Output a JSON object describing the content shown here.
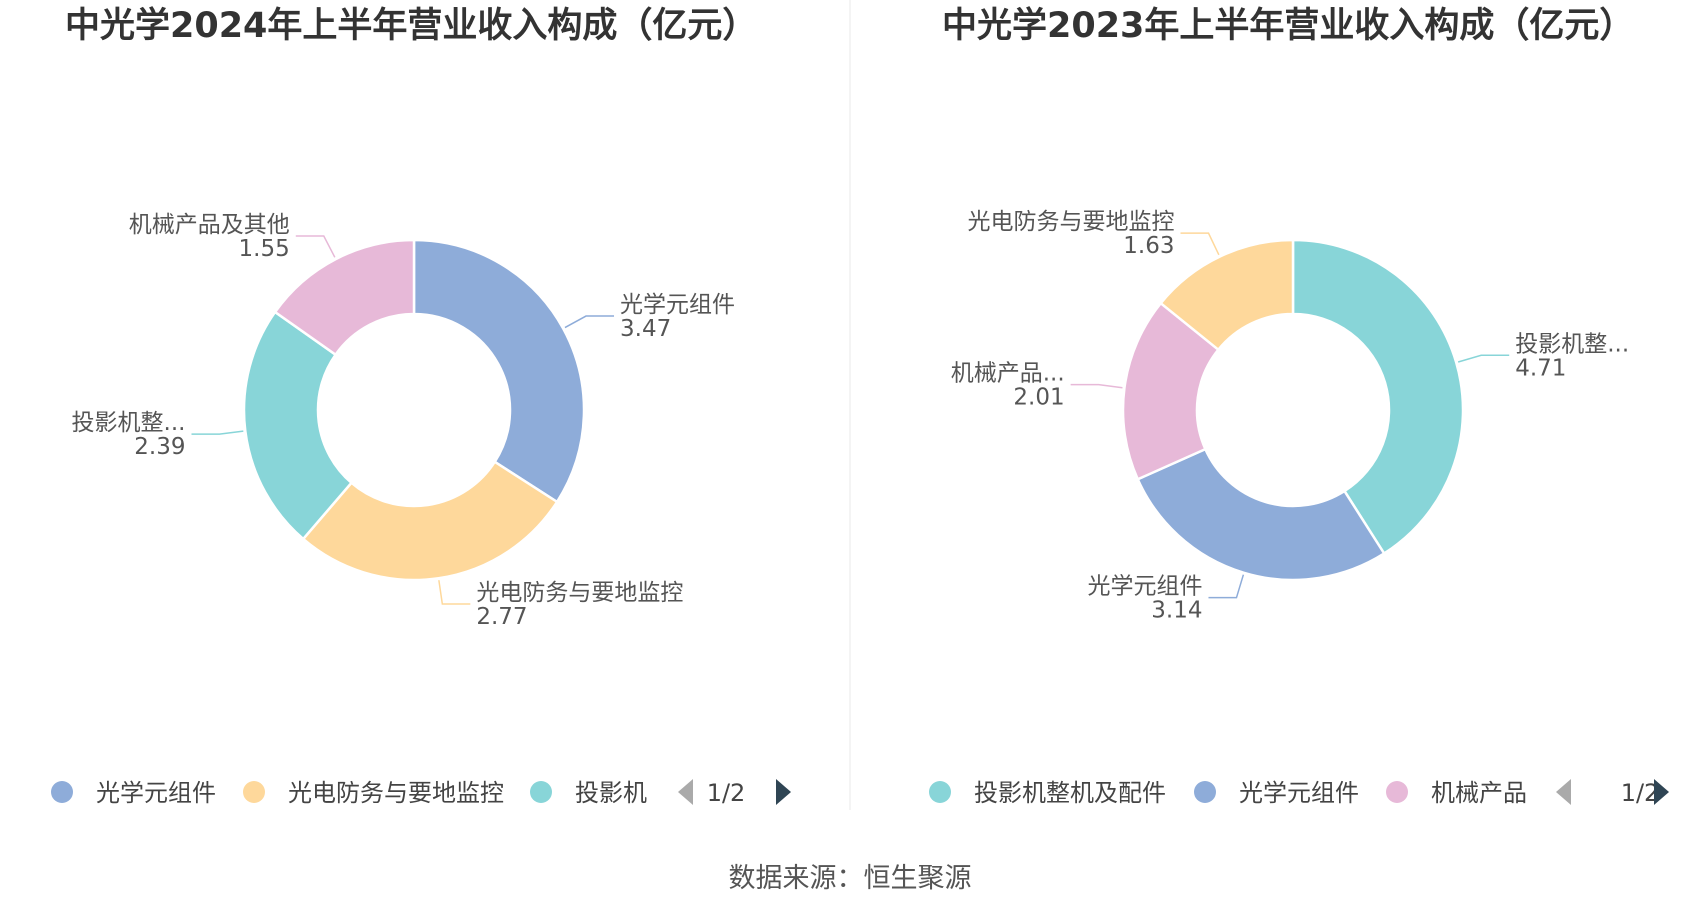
{
  "footer": "数据来源：恒生聚源",
  "chart_data": [
    {
      "type": "pie",
      "title": "中光学2024年上半年营业收入构成（亿元）",
      "series": [
        {
          "name": "光学元组件",
          "label": "光学元组件",
          "value": 3.47,
          "value_text": "3.47",
          "color": "#8eacd9"
        },
        {
          "name": "光电防务与要地监控",
          "label": "光电防务与要地监控",
          "value": 2.77,
          "value_text": "2.77",
          "color": "#fed89b"
        },
        {
          "name": "投影机整机及配件",
          "label": "投影机整...",
          "value": 2.39,
          "value_text": "2.39",
          "color": "#88d5d8"
        },
        {
          "name": "机械产品及其他",
          "label": "机械产品及其他",
          "value": 1.55,
          "value_text": "1.55",
          "color": "#e7b9d8"
        }
      ],
      "legend": {
        "position": "bottom",
        "items": [
          "光学元组件",
          "光电防务与要地监控",
          "投影机"
        ],
        "page": "1/2"
      }
    },
    {
      "type": "pie",
      "title": "中光学2023年上半年营业收入构成（亿元）",
      "series": [
        {
          "name": "投影机整机及配件",
          "label": "投影机整...",
          "value": 4.71,
          "value_text": "4.71",
          "color": "#88d5d8"
        },
        {
          "name": "光学元组件",
          "label": "光学元组件",
          "value": 3.14,
          "value_text": "3.14",
          "color": "#8eacd9"
        },
        {
          "name": "机械产品",
          "label": "机械产品...",
          "value": 2.01,
          "value_text": "2.01",
          "color": "#e7b9d8"
        },
        {
          "name": "光电防务与要地监控",
          "label": "光电防务与要地监控",
          "value": 1.63,
          "value_text": "1.63",
          "color": "#fed89b"
        }
      ],
      "legend": {
        "position": "bottom",
        "items": [
          "投影机整机及配件",
          "光学元组件",
          "机械产品"
        ],
        "page": "1/2"
      }
    }
  ]
}
